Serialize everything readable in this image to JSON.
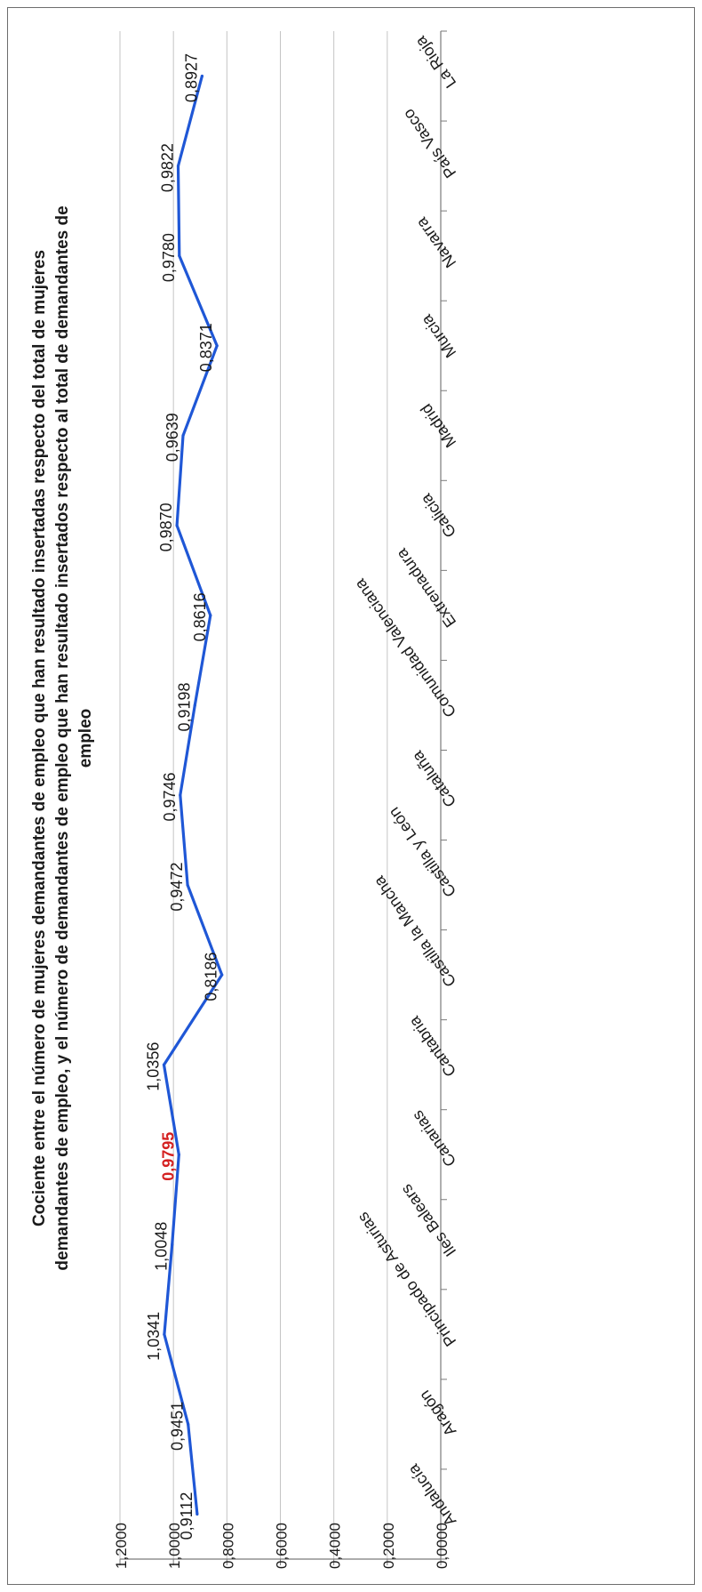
{
  "chart_data": {
    "type": "line",
    "title_lines": [
      "Cociente entre el número de mujeres demandantes de empleo que han resultado insertadas respecto del total de mujeres",
      "demandantes de empleo, y el número de demandantes de empleo que han resultado insertados respecto al total de demandantes de",
      "empleo"
    ],
    "xlabel": "",
    "ylabel": "",
    "ylim": [
      0,
      1.2
    ],
    "y_ticks": [
      "0,0000",
      "0,2000",
      "0,4000",
      "0,6000",
      "0,8000",
      "1,0000",
      "1,2000"
    ],
    "grid": "horizontal",
    "legend": "none",
    "categories": [
      "Andalucía",
      "Aragón",
      "Principado de Asturias",
      "Iles Balears",
      "Canarias",
      "Cantabria",
      "Castilla la Mancha",
      "Castilla y León",
      "Cataluña",
      "Comunidad Valenciana",
      "Extremadura",
      "Galicia",
      "Madrid",
      "Murcia",
      "Navarra",
      "País Vasco",
      "La Rioja"
    ],
    "values": [
      0.9112,
      0.9451,
      1.0341,
      1.0048,
      0.9795,
      1.0356,
      0.8186,
      0.9472,
      0.9746,
      0.9198,
      0.8616,
      0.987,
      0.9639,
      0.8371,
      0.978,
      0.9822,
      0.8927
    ],
    "data_labels": [
      "0,9112",
      "0,9451",
      "1,0341",
      "1,0048",
      "0,9795",
      "1,0356",
      "0,8186",
      "0,9472",
      "0,9746",
      "0,9198",
      "0,8616",
      "0,9870",
      "0,9639",
      "0,8371",
      "0,9780",
      "0,9822",
      "0,8927"
    ],
    "highlight_index": 4,
    "colors": {
      "line": "#1f57d6",
      "highlight_label": "#d42020",
      "label": "#1a1a1a",
      "grid": "#c4c4c4",
      "axis": "#7a7a7a"
    }
  }
}
